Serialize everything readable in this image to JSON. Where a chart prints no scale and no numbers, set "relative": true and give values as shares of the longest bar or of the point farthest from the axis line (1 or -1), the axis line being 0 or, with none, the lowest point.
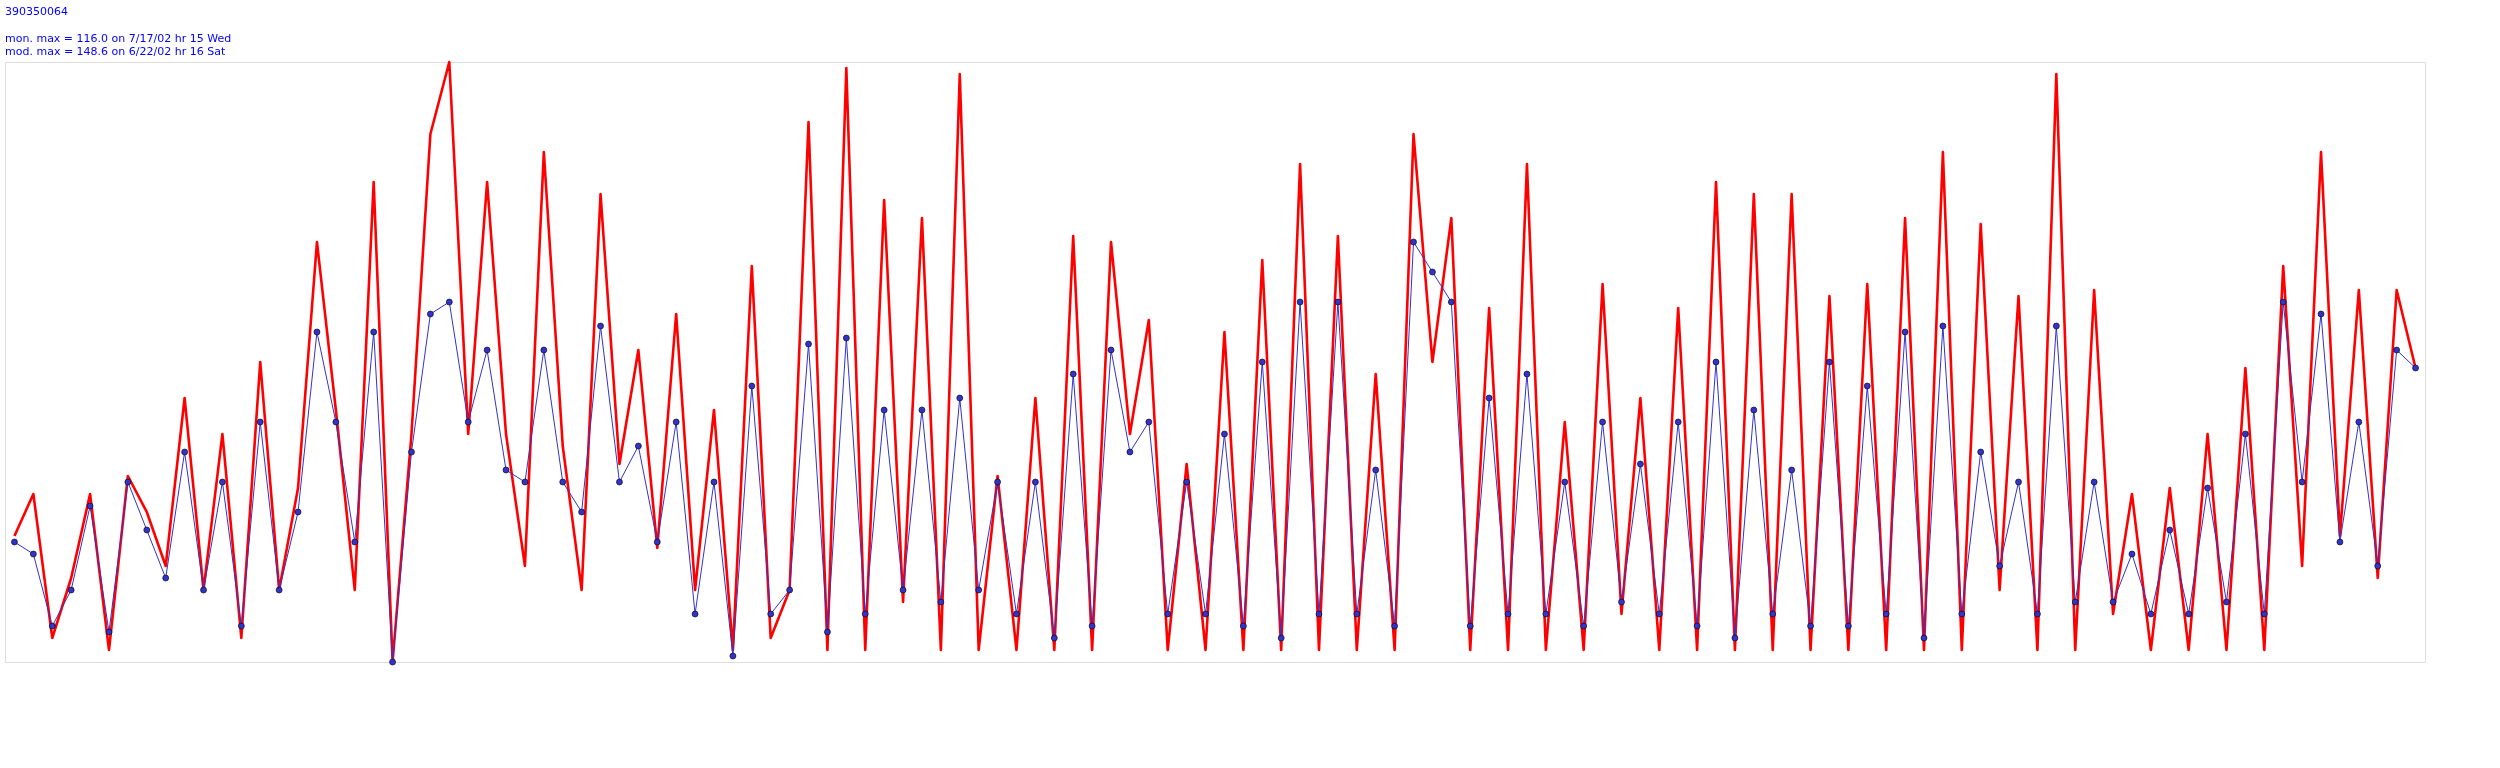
{
  "chart_data": {
    "type": "line",
    "title": "390350064",
    "relative": true,
    "tick_labels": false,
    "grid": false,
    "annotations": [
      "mon. max =  116.0 on 7/17/02 hr 15 Wed",
      "mod. max =  148.6 on 6/22/02 hr 16 Sat"
    ],
    "categories": [
      null,
      null,
      null,
      null,
      null,
      null,
      null,
      null,
      null,
      null,
      null,
      null,
      null,
      null,
      null,
      null,
      null,
      null,
      null,
      null,
      null,
      null,
      null,
      null,
      null,
      null,
      null,
      null,
      null,
      null,
      null,
      null,
      null,
      null,
      null,
      null,
      null,
      null,
      null,
      null,
      null,
      null,
      null,
      null,
      null,
      null,
      null,
      null,
      null,
      null,
      null,
      null,
      null,
      null,
      null,
      null,
      null,
      null,
      null,
      null,
      null,
      null,
      null,
      null,
      null,
      null,
      null,
      null,
      null,
      null,
      null,
      null,
      null,
      null,
      null,
      null,
      null,
      null,
      null,
      null,
      null,
      null,
      null,
      null,
      null,
      null,
      null,
      null,
      null,
      null,
      null,
      null,
      null,
      null,
      null,
      null,
      null,
      null,
      null,
      null,
      null,
      null,
      null,
      null,
      null,
      null,
      null,
      null,
      null,
      null,
      null,
      null,
      null,
      null,
      null,
      null,
      null,
      null,
      null,
      null,
      null,
      null,
      null,
      null,
      null,
      null,
      null,
      null
    ],
    "series": [
      {
        "color": "#ff0000",
        "values": [
          0.21,
          0.28,
          0.04,
          0.14,
          0.28,
          0.02,
          0.31,
          0.25,
          0.16,
          0.44,
          0.12,
          0.38,
          0.04,
          0.5,
          0.12,
          0.29,
          0.7,
          0.42,
          0.12,
          0.8,
          0,
          0.38,
          0.88,
          1,
          0.38,
          0.8,
          0.38,
          0.16,
          0.85,
          0.36,
          0.12,
          0.78,
          0.33,
          0.52,
          0.19,
          0.58,
          0.12,
          0.42,
          0.02,
          0.66,
          0.04,
          0.12,
          0.9,
          0.02,
          0.99,
          0.02,
          0.77,
          0.1,
          0.74,
          0.02,
          0.98,
          0.02,
          0.31,
          0.02,
          0.44,
          0.02,
          0.71,
          0.02,
          0.7,
          0.38,
          0.57,
          0.02,
          0.33,
          0.02,
          0.55,
          0.02,
          0.67,
          0.02,
          0.83,
          0.02,
          0.71,
          0.02,
          0.48,
          0.02,
          0.88,
          0.5,
          0.74,
          0.02,
          0.59,
          0.02,
          0.83,
          0.02,
          0.4,
          0.02,
          0.63,
          0.08,
          0.44,
          0.02,
          0.59,
          0.02,
          0.8,
          0.02,
          0.78,
          0.02,
          0.78,
          0.02,
          0.61,
          0.02,
          0.63,
          0.02,
          0.74,
          0.02,
          0.85,
          0.02,
          0.73,
          0.12,
          0.61,
          0.02,
          0.98,
          0.02,
          0.62,
          0.08,
          0.28,
          0.02,
          0.29,
          0.02,
          0.38,
          0.02,
          0.49,
          0.02,
          0.66,
          0.16,
          0.85,
          0.21,
          0.62,
          0.14,
          0.62,
          0.49
        ]
      },
      {
        "color": "#3333cc",
        "marker": "circle",
        "values": [
          0.2,
          0.18,
          0.06,
          0.12,
          0.26,
          0.05,
          0.3,
          0.22,
          0.14,
          0.35,
          0.12,
          0.3,
          0.06,
          0.4,
          0.12,
          0.25,
          0.55,
          0.4,
          0.2,
          0.55,
          0,
          0.35,
          0.58,
          0.6,
          0.4,
          0.52,
          0.32,
          0.3,
          0.52,
          0.3,
          0.25,
          0.56,
          0.3,
          0.36,
          0.2,
          0.4,
          0.08,
          0.3,
          0.01,
          0.46,
          0.08,
          0.12,
          0.53,
          0.05,
          0.54,
          0.08,
          0.42,
          0.12,
          0.42,
          0.1,
          0.44,
          0.12,
          0.3,
          0.08,
          0.3,
          0.04,
          0.48,
          0.06,
          0.52,
          0.35,
          0.4,
          0.08,
          0.3,
          0.08,
          0.38,
          0.06,
          0.5,
          0.04,
          0.6,
          0.08,
          0.6,
          0.08,
          0.32,
          0.06,
          0.7,
          0.65,
          0.6,
          0.06,
          0.44,
          0.08,
          0.48,
          0.08,
          0.3,
          0.06,
          0.4,
          0.1,
          0.33,
          0.08,
          0.4,
          0.06,
          0.5,
          0.04,
          0.42,
          0.08,
          0.32,
          0.06,
          0.5,
          0.06,
          0.46,
          0.08,
          0.55,
          0.04,
          0.56,
          0.08,
          0.35,
          0.16,
          0.3,
          0.08,
          0.56,
          0.1,
          0.3,
          0.1,
          0.18,
          0.08,
          0.22,
          0.08,
          0.29,
          0.1,
          0.38,
          0.08,
          0.6,
          0.3,
          0.58,
          0.2,
          0.4,
          0.16,
          0.52,
          0.49
        ]
      }
    ]
  }
}
